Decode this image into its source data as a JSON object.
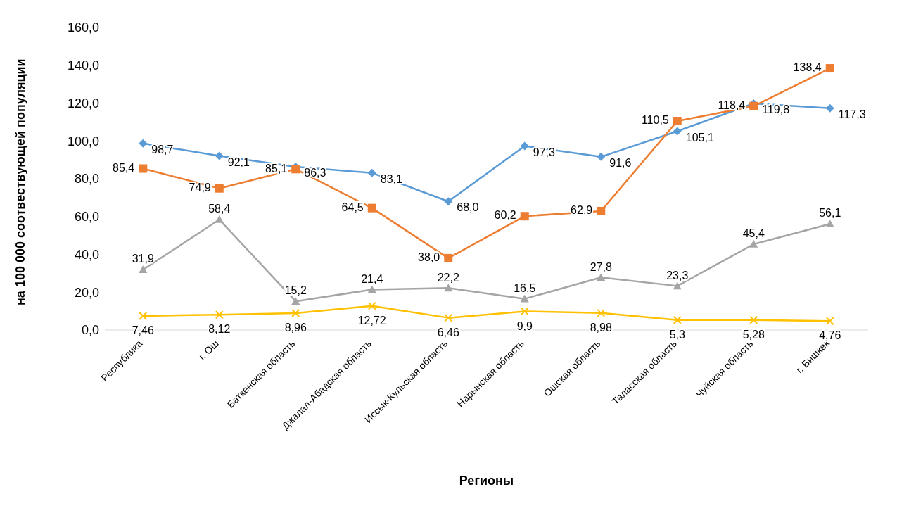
{
  "chart_data": {
    "type": "line",
    "xlabel": "Регионы",
    "ylabel": "на 100 000 соотвествующей популяции",
    "categories": [
      "Республика",
      "г. Ош",
      "Баткенская область",
      "Джалал-Абадская область",
      "Иссык-Кульская область",
      "Нарынская область",
      "Ошская область",
      "Таласская область",
      "Чуйская область",
      "г. Бишкек"
    ],
    "series": [
      {
        "color": "#5b9bd5",
        "marker": "diamond",
        "values": [
          98.7,
          92.1,
          86.3,
          83.1,
          68.0,
          97.3,
          91.6,
          105.1,
          119.8,
          117.3
        ],
        "value_labels": [
          "98,7",
          "92,1",
          "86,3",
          "83,1",
          "68,0",
          "97,3",
          "91,6",
          "105,1",
          "119,8",
          "117,3"
        ]
      },
      {
        "color": "#ed7d31",
        "marker": "square",
        "values": [
          85.4,
          74.9,
          85.1,
          64.5,
          38.0,
          60.2,
          62.9,
          110.5,
          118.4,
          138.4
        ],
        "value_labels": [
          "85,4",
          "74,9",
          "85,1",
          "64,5",
          "38,0",
          "60,2",
          "62,9",
          "110,5",
          "118,4",
          "138,4"
        ]
      },
      {
        "color": "#a5a5a5",
        "marker": "triangle",
        "values": [
          31.9,
          58.4,
          15.2,
          21.4,
          22.2,
          16.5,
          27.8,
          23.3,
          45.4,
          56.1
        ],
        "value_labels": [
          "31,9",
          "58,4",
          "15,2",
          "21,4",
          "22,2",
          "16,5",
          "27,8",
          "23,3",
          "45,4",
          "56,1"
        ]
      },
      {
        "color": "#ffc000",
        "marker": "cross",
        "values": [
          7.46,
          8.12,
          8.96,
          12.72,
          6.46,
          9.9,
          8.98,
          5.3,
          5.28,
          4.76
        ],
        "value_labels": [
          "7,46",
          "8,12",
          "8,96",
          "12,72",
          "6,46",
          "9,9",
          "8,98",
          "5,3",
          "5,28",
          "4,76"
        ]
      }
    ],
    "ylim": [
      0,
      160
    ],
    "yticks": [
      {
        "value": 0,
        "label": "0,0"
      },
      {
        "value": 20,
        "label": "20,0"
      },
      {
        "value": 40,
        "label": "40,0"
      },
      {
        "value": 60,
        "label": "60,0"
      },
      {
        "value": 80,
        "label": "80,0"
      },
      {
        "value": 100,
        "label": "100,0"
      },
      {
        "value": 120,
        "label": "120,0"
      },
      {
        "value": 140,
        "label": "140,0"
      },
      {
        "value": 160,
        "label": "160,0"
      }
    ],
    "grid": false,
    "legend": false,
    "line_style": "solid"
  }
}
